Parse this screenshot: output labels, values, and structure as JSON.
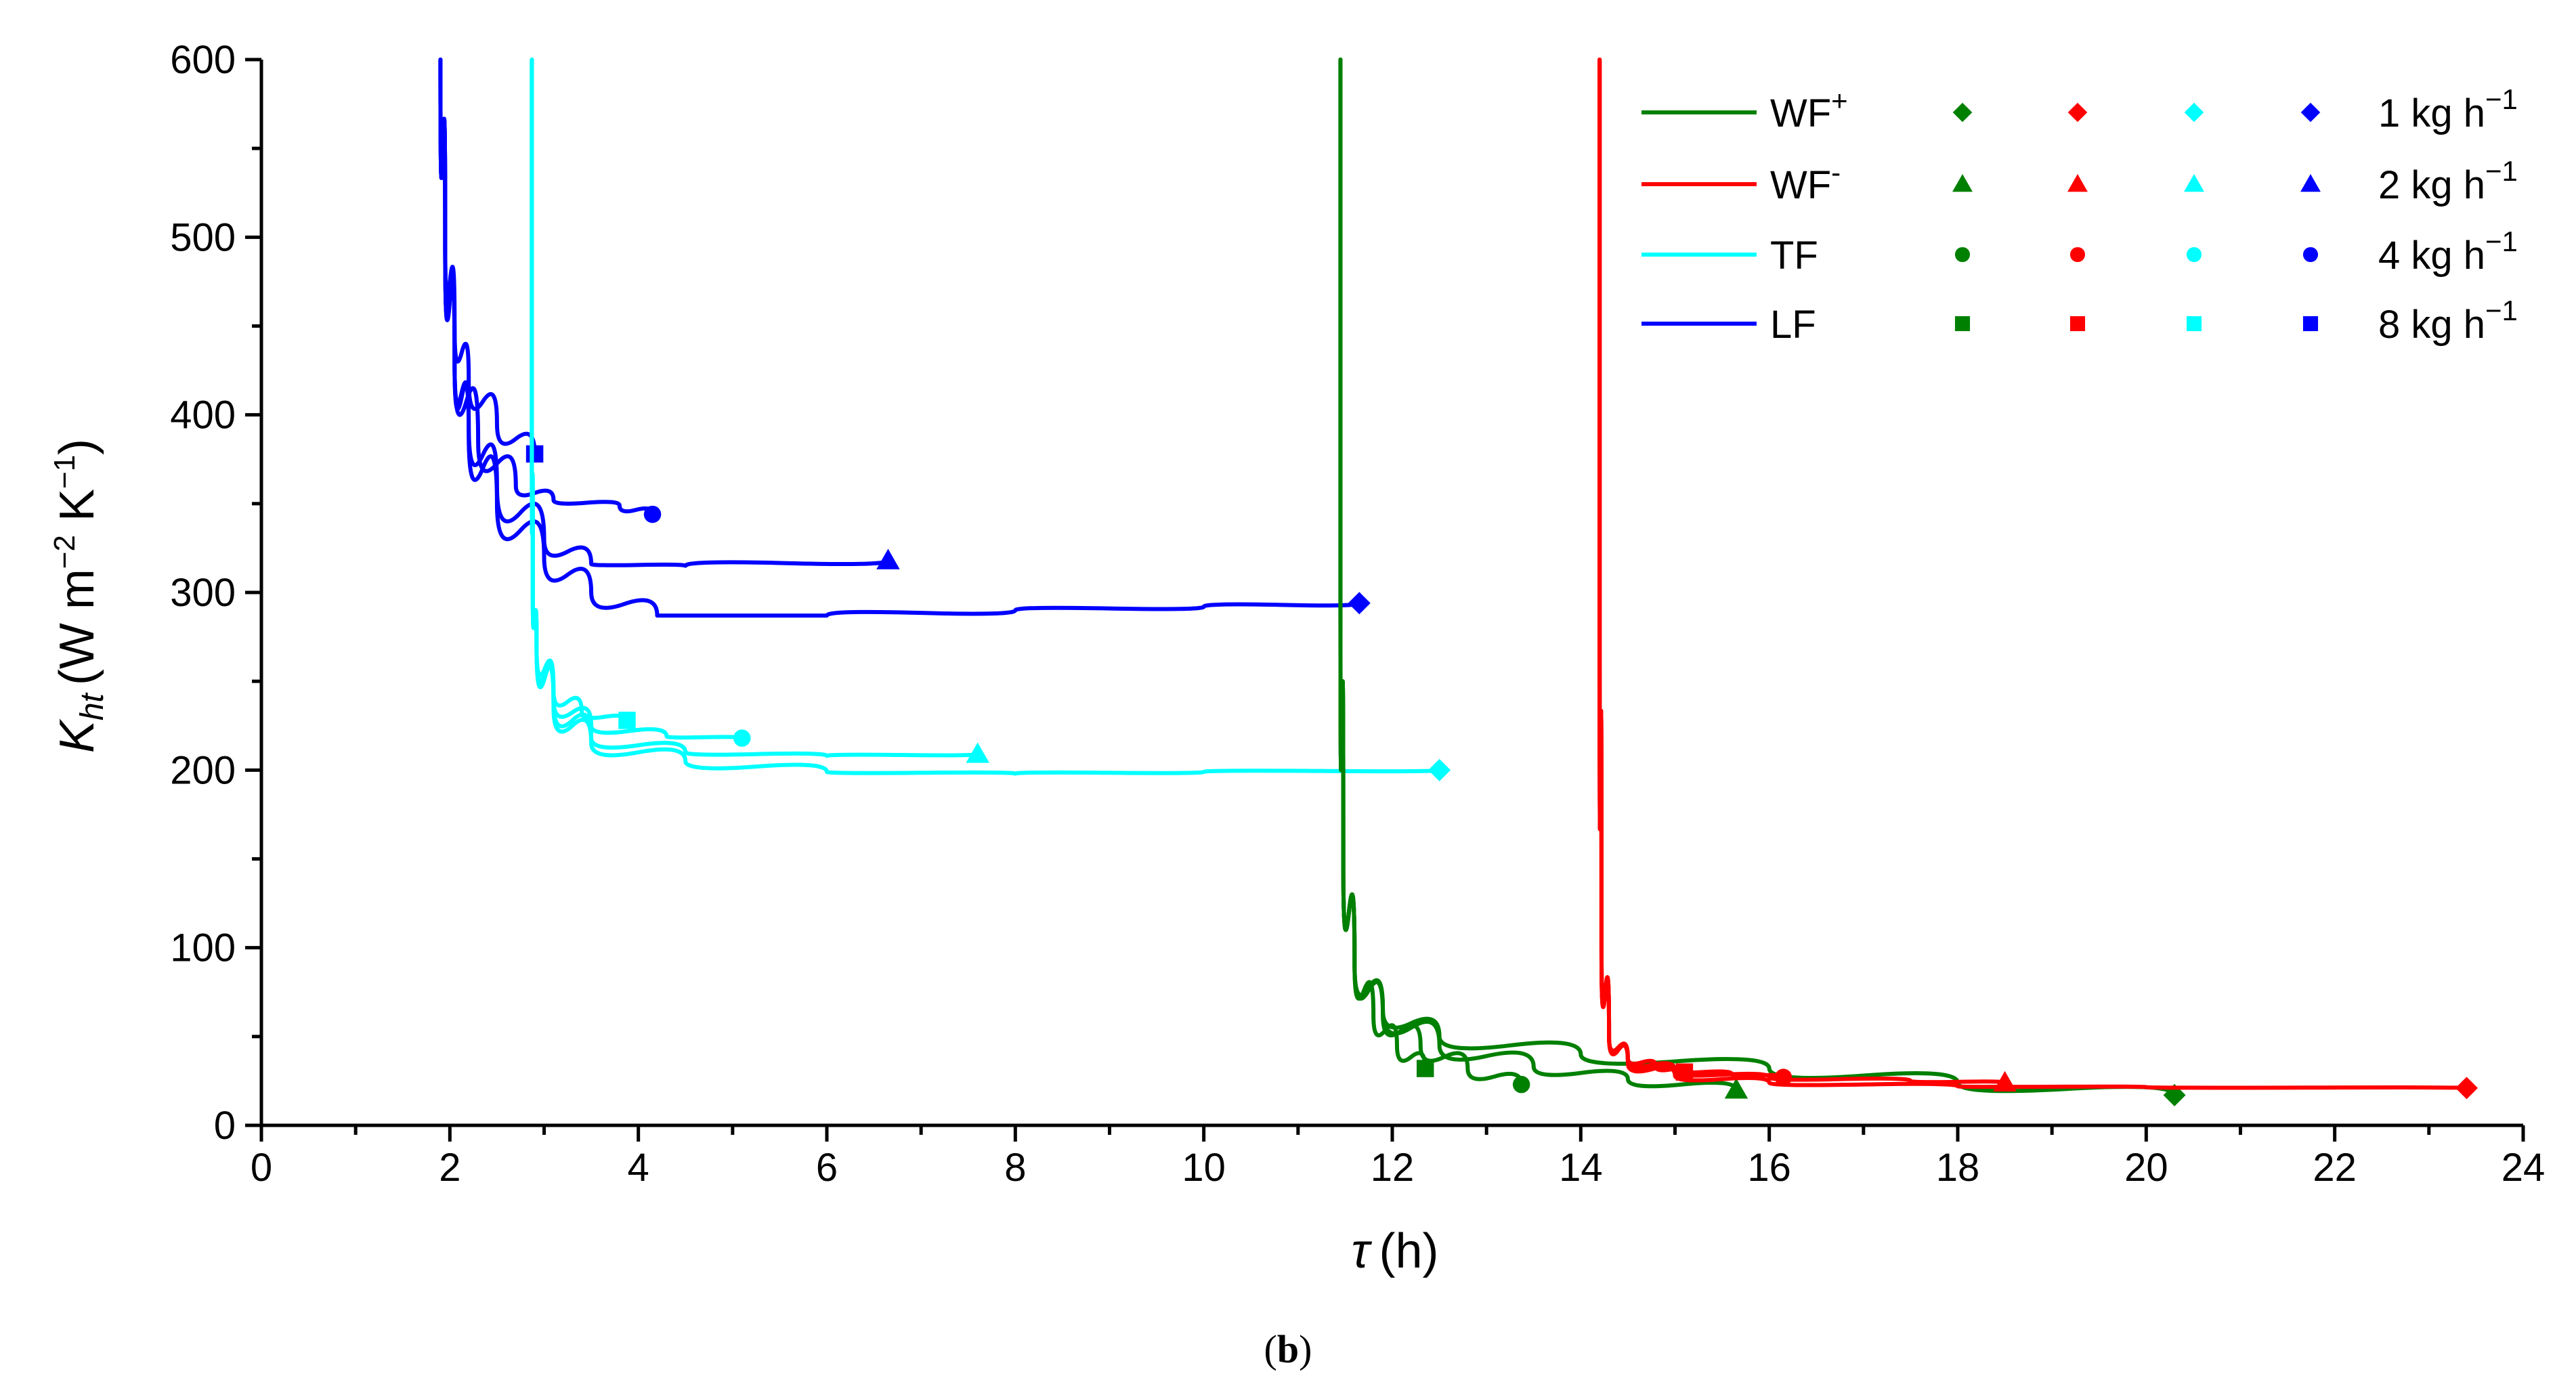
{
  "chart_data": {
    "type": "line",
    "caption": "b",
    "xlabel_symbol": "τ",
    "xlabel_unit": "(h)",
    "ylabel_symbol": "K",
    "ylabel_subscript": "ht",
    "ylabel_unit_main": "(W m",
    "ylabel_unit_exp1": "−2",
    "ylabel_unit_mid": " K",
    "ylabel_unit_exp2": "−1",
    "ylabel_unit_end": ")",
    "xlim": [
      0,
      24
    ],
    "ylim": [
      0,
      600
    ],
    "xticks": [
      0,
      2,
      4,
      6,
      8,
      10,
      12,
      14,
      16,
      18,
      20,
      22,
      24
    ],
    "yticks": [
      0,
      100,
      200,
      300,
      400,
      500,
      600
    ],
    "legend": {
      "lines": [
        {
          "base": "WF",
          "sup": "+",
          "color": "#008000"
        },
        {
          "base": "WF",
          "sup": "-",
          "color": "#ff0000"
        },
        {
          "base": "TF",
          "sup": "",
          "color": "#00ffff"
        },
        {
          "base": "LF",
          "sup": "",
          "color": "#0000ff"
        }
      ],
      "markers": [
        {
          "shape": "diamond",
          "label": "1 kg h",
          "exp": "−1"
        },
        {
          "shape": "triangle",
          "label": "2 kg h",
          "exp": "−1"
        },
        {
          "shape": "circle",
          "label": "4 kg h",
          "exp": "−1"
        },
        {
          "shape": "square",
          "label": "8 kg h",
          "exp": "−1"
        }
      ]
    },
    "series": [
      {
        "name": "LF",
        "flow": "1 kg h-1",
        "color": "#0000ff",
        "marker": "diamond",
        "points": [
          [
            1.9,
            600
          ],
          [
            1.95,
            500
          ],
          [
            2.05,
            430
          ],
          [
            2.2,
            390
          ],
          [
            2.5,
            350
          ],
          [
            3.0,
            320
          ],
          [
            3.5,
            300
          ],
          [
            4.2,
            287
          ],
          [
            6,
            287
          ],
          [
            8,
            290
          ],
          [
            10,
            292
          ],
          [
            11.65,
            294
          ]
        ]
      },
      {
        "name": "LF",
        "flow": "2 kg h-1",
        "color": "#0000ff",
        "marker": "triangle",
        "points": [
          [
            1.9,
            600
          ],
          [
            1.95,
            500
          ],
          [
            2.05,
            430
          ],
          [
            2.2,
            395
          ],
          [
            2.5,
            360
          ],
          [
            3.0,
            330
          ],
          [
            3.5,
            316
          ],
          [
            4.5,
            315
          ],
          [
            6.65,
            318
          ]
        ]
      },
      {
        "name": "LF",
        "flow": "4 kg h-1",
        "color": "#0000ff",
        "marker": "circle",
        "points": [
          [
            1.9,
            600
          ],
          [
            1.95,
            500
          ],
          [
            2.05,
            430
          ],
          [
            2.3,
            385
          ],
          [
            2.7,
            360
          ],
          [
            3.1,
            352
          ],
          [
            3.8,
            349
          ],
          [
            4.15,
            344
          ]
        ]
      },
      {
        "name": "LF",
        "flow": "8 kg h-1",
        "color": "#0000ff",
        "marker": "square",
        "points": [
          [
            1.9,
            600
          ],
          [
            1.95,
            500
          ],
          [
            2.05,
            450
          ],
          [
            2.2,
            420
          ],
          [
            2.5,
            395
          ],
          [
            2.9,
            378
          ]
        ]
      },
      {
        "name": "TF",
        "flow": "1 kg h-1",
        "color": "#00ffff",
        "marker": "diamond",
        "points": [
          [
            2.87,
            600
          ],
          [
            2.87,
            400
          ],
          [
            2.88,
            300
          ],
          [
            2.92,
            270
          ],
          [
            3.1,
            235
          ],
          [
            3.5,
            215
          ],
          [
            4.5,
            205
          ],
          [
            6,
            199
          ],
          [
            8,
            198
          ],
          [
            10,
            199
          ],
          [
            12.5,
            200
          ]
        ]
      },
      {
        "name": "TF",
        "flow": "2 kg h-1",
        "color": "#00ffff",
        "marker": "triangle",
        "points": [
          [
            2.87,
            600
          ],
          [
            2.87,
            400
          ],
          [
            2.88,
            300
          ],
          [
            2.92,
            270
          ],
          [
            3.1,
            238
          ],
          [
            3.5,
            218
          ],
          [
            4.5,
            210
          ],
          [
            6,
            208
          ],
          [
            7.6,
            209
          ]
        ]
      },
      {
        "name": "TF",
        "flow": "4 kg h-1",
        "color": "#00ffff",
        "marker": "circle",
        "points": [
          [
            2.87,
            600
          ],
          [
            2.87,
            400
          ],
          [
            2.88,
            300
          ],
          [
            2.92,
            270
          ],
          [
            3.1,
            240
          ],
          [
            3.5,
            225
          ],
          [
            4.3,
            219
          ],
          [
            5.1,
            218
          ]
        ]
      },
      {
        "name": "TF",
        "flow": "8 kg h-1",
        "color": "#00ffff",
        "marker": "square",
        "points": [
          [
            2.87,
            600
          ],
          [
            2.87,
            400
          ],
          [
            2.88,
            300
          ],
          [
            2.92,
            270
          ],
          [
            3.1,
            245
          ],
          [
            3.4,
            232
          ],
          [
            3.88,
            228
          ]
        ]
      },
      {
        "name": "WF+",
        "flow": "1 kg h-1",
        "color": "#008000",
        "marker": "diamond",
        "points": [
          [
            11.45,
            600
          ],
          [
            11.45,
            300
          ],
          [
            11.48,
            150
          ],
          [
            11.6,
            90
          ],
          [
            11.9,
            65
          ],
          [
            12.5,
            50
          ],
          [
            14,
            40
          ],
          [
            16,
            32
          ],
          [
            18,
            24
          ],
          [
            20.3,
            17
          ]
        ]
      },
      {
        "name": "WF+",
        "flow": "2 kg h-1",
        "color": "#008000",
        "marker": "triangle",
        "points": [
          [
            11.45,
            600
          ],
          [
            11.45,
            300
          ],
          [
            11.48,
            150
          ],
          [
            11.6,
            90
          ],
          [
            11.9,
            65
          ],
          [
            12.5,
            45
          ],
          [
            13.5,
            33
          ],
          [
            14.5,
            26
          ],
          [
            15.65,
            20
          ]
        ]
      },
      {
        "name": "WF+",
        "flow": "4 kg h-1",
        "color": "#008000",
        "marker": "circle",
        "points": [
          [
            11.45,
            600
          ],
          [
            11.45,
            300
          ],
          [
            11.48,
            150
          ],
          [
            11.6,
            90
          ],
          [
            11.9,
            62
          ],
          [
            12.3,
            45
          ],
          [
            12.8,
            32
          ],
          [
            13.37,
            23
          ]
        ]
      },
      {
        "name": "WF+",
        "flow": "8 kg h-1",
        "color": "#008000",
        "marker": "square",
        "points": [
          [
            11.45,
            600
          ],
          [
            11.45,
            300
          ],
          [
            11.48,
            150
          ],
          [
            11.6,
            90
          ],
          [
            11.8,
            62
          ],
          [
            12.05,
            45
          ],
          [
            12.35,
            32
          ]
        ]
      },
      {
        "name": "WF-",
        "flow": "1 kg h-1",
        "color": "#ff0000",
        "marker": "diamond",
        "points": [
          [
            14.2,
            600
          ],
          [
            14.2,
            300
          ],
          [
            14.22,
            100
          ],
          [
            14.3,
            50
          ],
          [
            14.5,
            35
          ],
          [
            15,
            28
          ],
          [
            16,
            24
          ],
          [
            18,
            22
          ],
          [
            20,
            21.5
          ],
          [
            23.4,
            21
          ]
        ]
      },
      {
        "name": "WF-",
        "flow": "2 kg h-1",
        "color": "#ff0000",
        "marker": "triangle",
        "points": [
          [
            14.2,
            600
          ],
          [
            14.2,
            300
          ],
          [
            14.22,
            100
          ],
          [
            14.3,
            50
          ],
          [
            14.5,
            36
          ],
          [
            15,
            30
          ],
          [
            16,
            27
          ],
          [
            17.5,
            25
          ],
          [
            18.5,
            24
          ]
        ]
      },
      {
        "name": "WF-",
        "flow": "4 kg h-1",
        "color": "#ff0000",
        "marker": "circle",
        "points": [
          [
            14.2,
            600
          ],
          [
            14.2,
            300
          ],
          [
            14.22,
            100
          ],
          [
            14.3,
            50
          ],
          [
            14.5,
            37
          ],
          [
            15,
            31
          ],
          [
            15.6,
            29
          ],
          [
            16.15,
            27
          ]
        ]
      },
      {
        "name": "WF-",
        "flow": "8 kg h-1",
        "color": "#ff0000",
        "marker": "square",
        "points": [
          [
            14.2,
            600
          ],
          [
            14.2,
            300
          ],
          [
            14.22,
            100
          ],
          [
            14.3,
            50
          ],
          [
            14.5,
            38
          ],
          [
            14.8,
            33
          ],
          [
            15.1,
            30
          ]
        ]
      }
    ]
  }
}
